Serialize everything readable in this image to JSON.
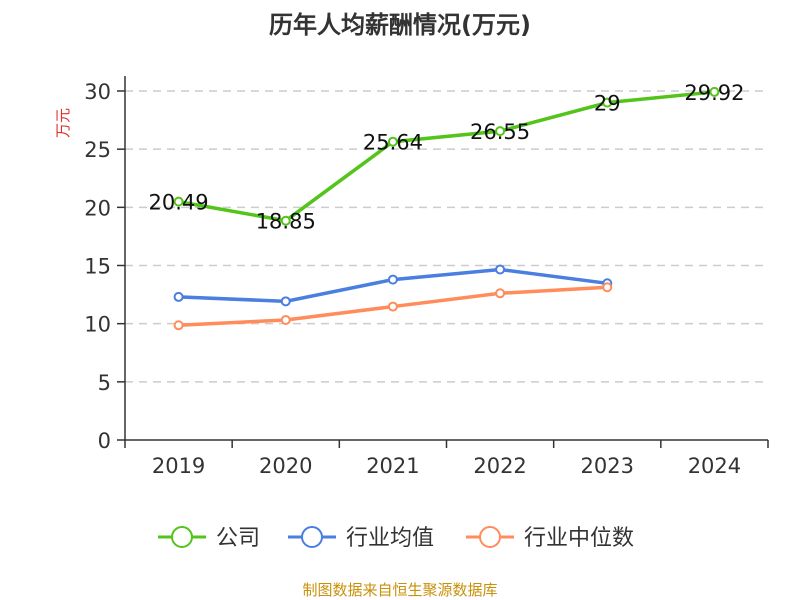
{
  "chart_data": {
    "type": "line",
    "title": "历年人均薪酬情况(万元)",
    "ylabel": "万元",
    "categories": [
      "2019",
      "2020",
      "2021",
      "2022",
      "2023",
      "2024"
    ],
    "ylim": [
      0,
      30
    ],
    "yticks": [
      0,
      5,
      10,
      15,
      20,
      25,
      30
    ],
    "grid": true,
    "legend_position": "bottom",
    "series": [
      {
        "name": "公司",
        "color": "#52c41a",
        "values": [
          20.49,
          18.85,
          25.64,
          26.55,
          29,
          29.92
        ],
        "labels": [
          "20.49",
          "18.85",
          "25.64",
          "26.55",
          "29",
          "29.92"
        ]
      },
      {
        "name": "行业均值",
        "color": "#4a7ee0",
        "values": [
          12.3,
          11.92,
          13.79,
          14.66,
          13.47,
          null
        ]
      },
      {
        "name": "行业中位数",
        "color": "#ff8c5a",
        "values": [
          9.86,
          10.32,
          11.47,
          12.61,
          13.13,
          null
        ]
      }
    ],
    "source": "制图数据来自恒生聚源数据库"
  }
}
